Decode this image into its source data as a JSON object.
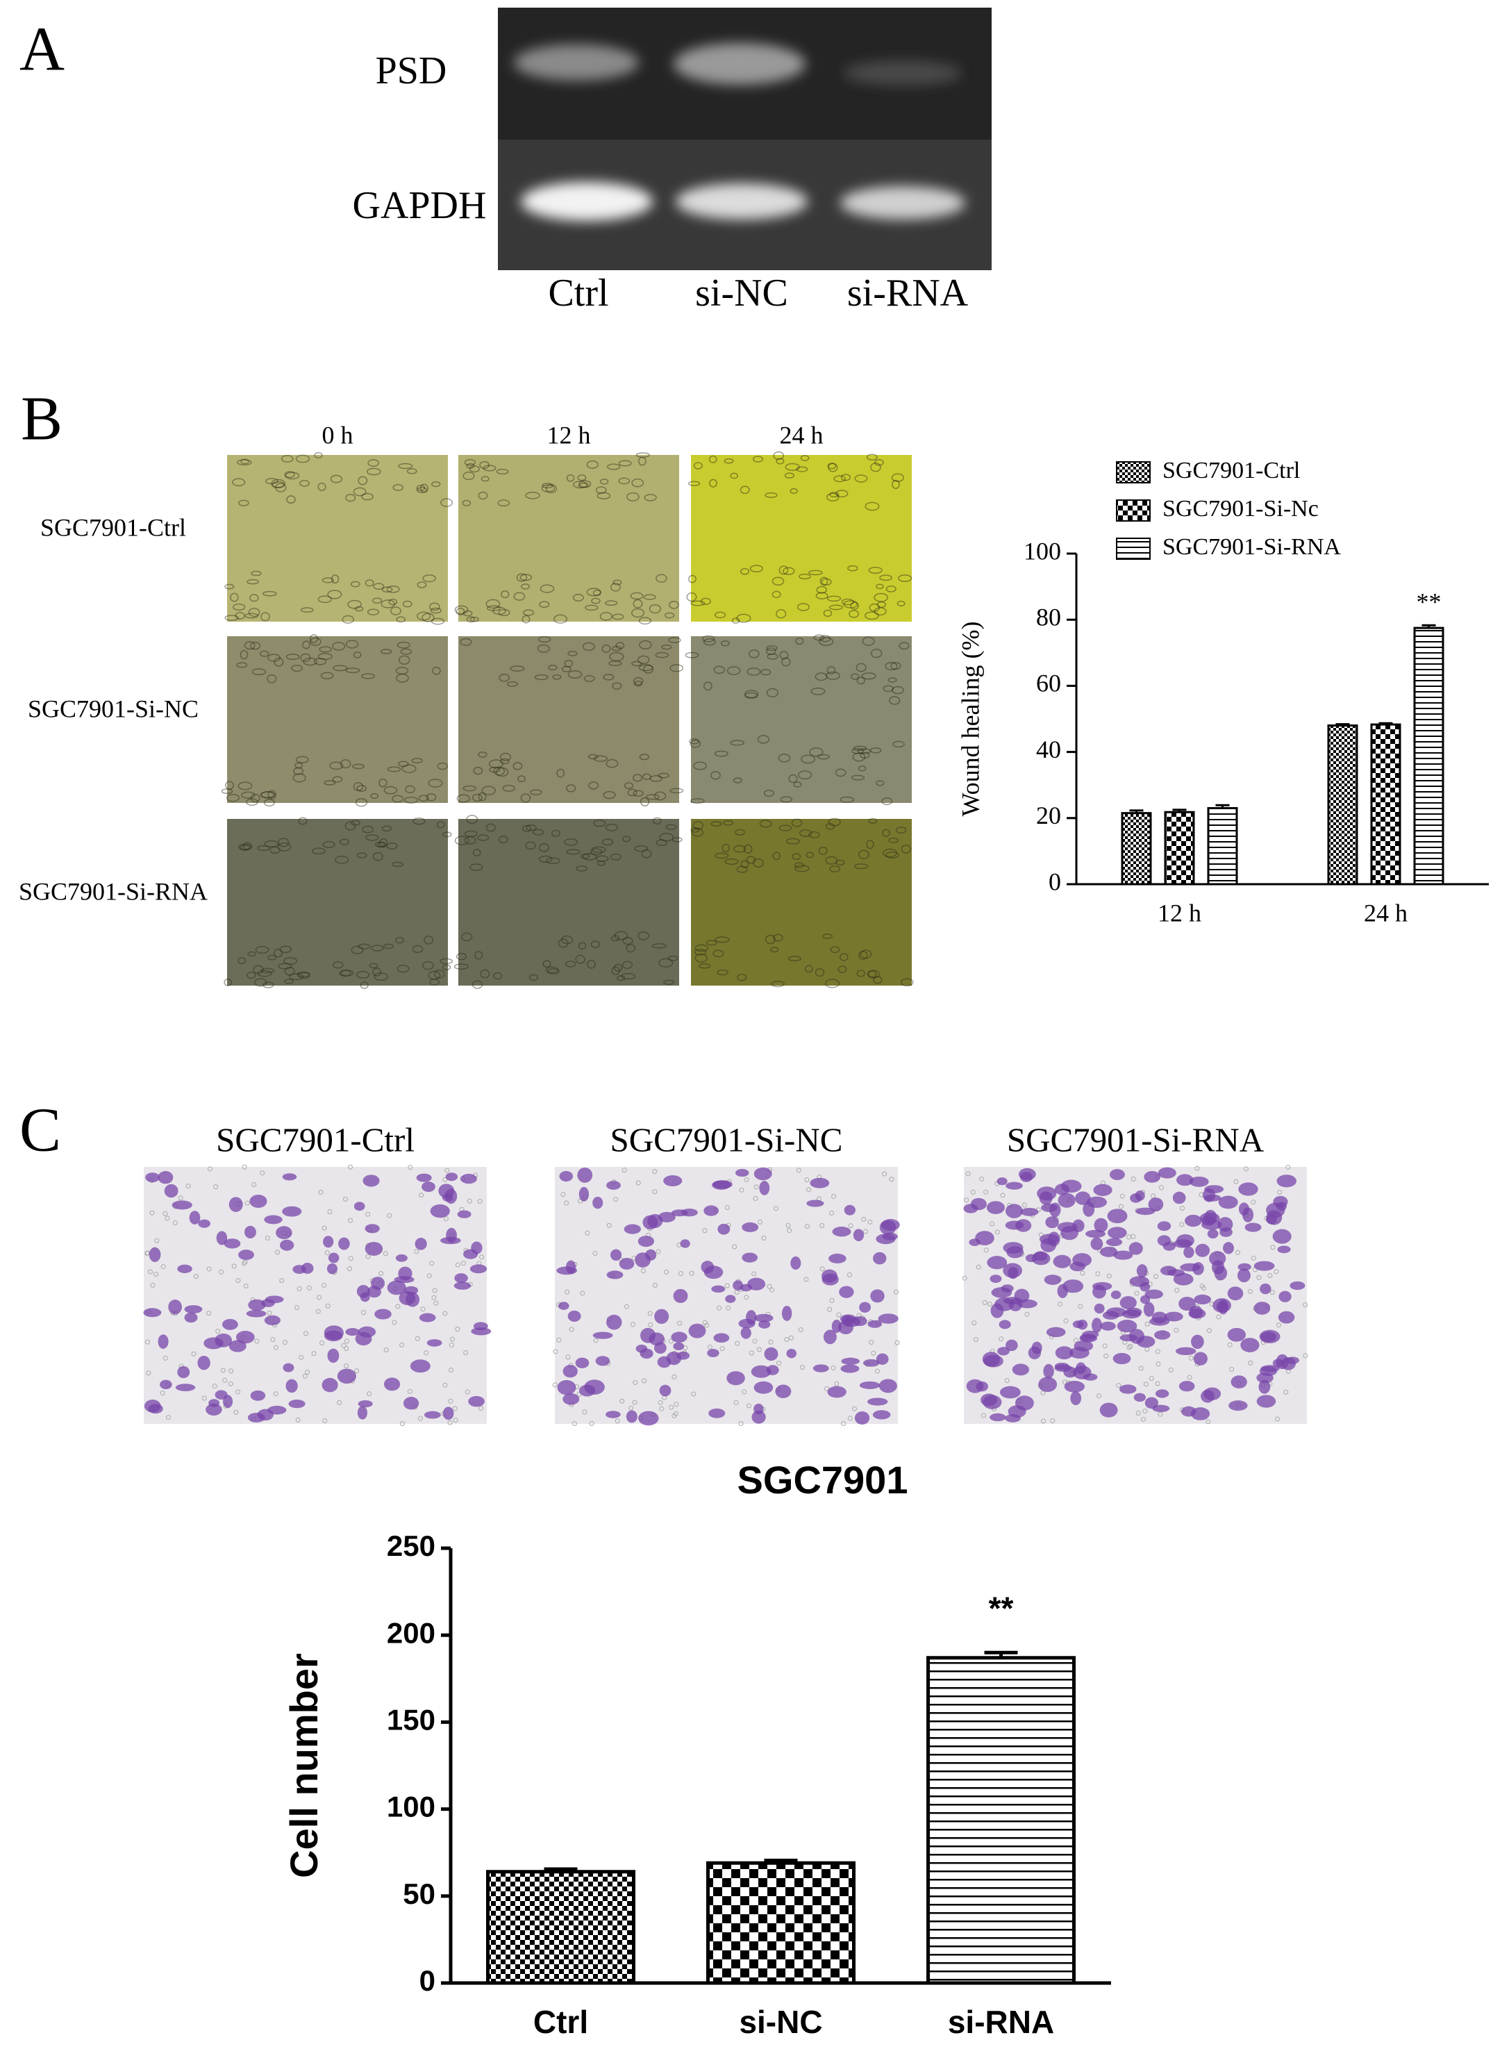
{
  "panel_a": {
    "label": "A",
    "rows": [
      "PSD",
      "GAPDH"
    ],
    "lanes": [
      "Ctrl",
      "si-NC",
      "si-RNA"
    ]
  },
  "panel_b": {
    "label": "B",
    "times": [
      "0 h",
      "12 h",
      "24 h"
    ],
    "groups": [
      "SGC7901-Ctrl",
      "SGC7901-Si-NC",
      "SGC7901-Si-RNA"
    ]
  },
  "panel_c": {
    "label": "C",
    "groups": [
      "SGC7901-Ctrl",
      "SGC7901-Si-NC",
      "SGC7901-Si-RNA"
    ]
  },
  "chart_data": [
    {
      "type": "bar",
      "y_label": "Wound healing (%)",
      "categories": [
        "12 h",
        "24 h"
      ],
      "series": [
        {
          "name": "SGC7901-Ctrl",
          "color": "#000000",
          "pattern": "checker-fine",
          "values": [
            21.5,
            48
          ],
          "errors": [
            0.8,
            0.4
          ],
          "significance": [
            null,
            null
          ]
        },
        {
          "name": "SGC7901-Si-Nc",
          "color": "#000000",
          "pattern": "checker",
          "values": [
            21.8,
            48.3
          ],
          "errors": [
            0.7,
            0.4
          ],
          "significance": [
            null,
            null
          ]
        },
        {
          "name": "SGC7901-Si-RNA",
          "color": "#000000",
          "pattern": "hlines",
          "values": [
            23,
            77.5
          ],
          "errors": [
            0.9,
            0.8
          ],
          "significance": [
            null,
            "**"
          ]
        }
      ],
      "ylim": [
        0,
        100
      ],
      "yticks": [
        0,
        20,
        40,
        60,
        80,
        100
      ],
      "legend": "top"
    },
    {
      "type": "bar",
      "title": "SGC7901",
      "y_label": "Cell number",
      "categories": [
        "Ctrl",
        "si-NC",
        "si-RNA"
      ],
      "values": [
        64,
        69,
        187
      ],
      "errors": [
        1.5,
        1.5,
        3
      ],
      "significance": [
        null,
        null,
        "**"
      ],
      "patterns": [
        "checker-medium",
        "checker-large",
        "hlines-wide"
      ],
      "color": "#000000",
      "ylim": [
        0,
        250
      ],
      "yticks": [
        0,
        50,
        100,
        150,
        200,
        250
      ]
    }
  ]
}
